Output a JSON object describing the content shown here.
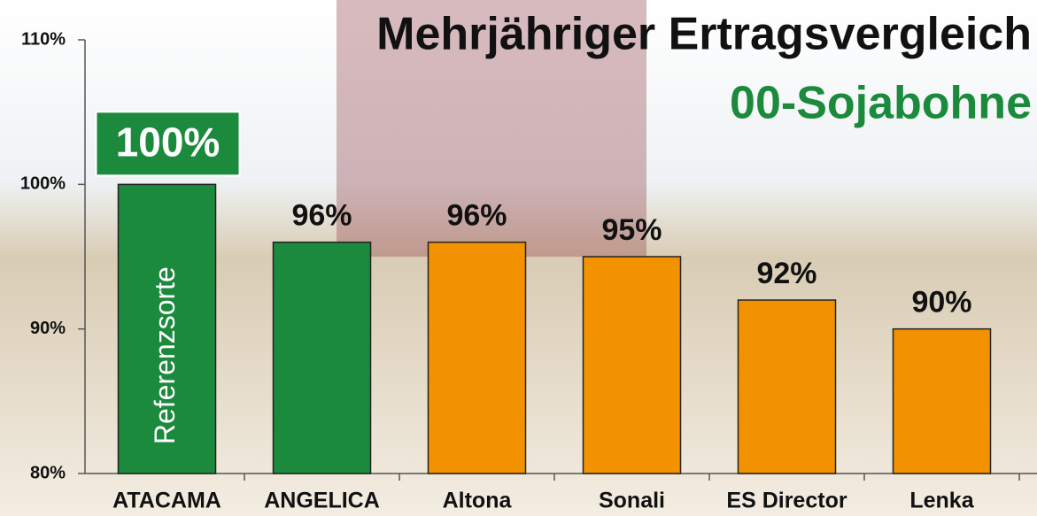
{
  "chart_data": {
    "type": "bar",
    "title": "Mehrjähriger Ertragsvergleich",
    "subtitle": "00-Sojabohne",
    "categories": [
      "ATACAMA",
      "ANGELICA",
      "Altona",
      "Sonali",
      "ES Director",
      "Lenka"
    ],
    "values": [
      100,
      96,
      96,
      95,
      92,
      90
    ],
    "value_labels": [
      "100%",
      "96%",
      "96%",
      "95%",
      "92%",
      "90%"
    ],
    "colors": [
      "#1b8a3c",
      "#1b8a3c",
      "#f39200",
      "#f39200",
      "#f39200",
      "#f39200"
    ],
    "annotation": "Referenzsorte",
    "ylim": [
      80,
      110
    ],
    "yticks": [
      {
        "value": 80,
        "label": "80%"
      },
      {
        "value": 90,
        "label": "90%"
      },
      {
        "value": 100,
        "label": "100%"
      },
      {
        "value": 110,
        "label": "110%"
      }
    ],
    "grid": false
  }
}
